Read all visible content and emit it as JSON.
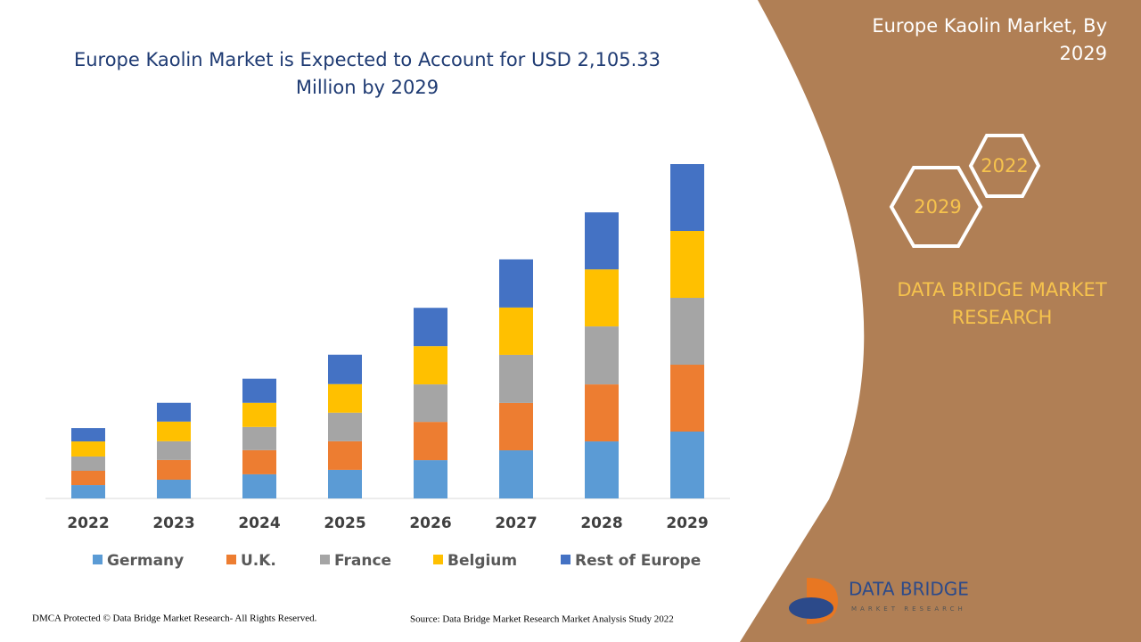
{
  "chart_data": {
    "type": "stacked_bar",
    "title": "Europe Kaolin Market is Expected to Account for USD 2,105.33 Million by 2029",
    "categories": [
      "2022",
      "2023",
      "2024",
      "2025",
      "2026",
      "2027",
      "2028",
      "2029"
    ],
    "series": [
      {
        "name": "Germany",
        "color": "#5b9bd5",
        "values": [
          84,
          118,
          152,
          180,
          241,
          303,
          359,
          421
        ]
      },
      {
        "name": "U.K.",
        "color": "#ed7d31",
        "values": [
          90,
          124,
          152,
          180,
          241,
          298,
          359,
          421
        ]
      },
      {
        "name": "France",
        "color": "#a5a5a5",
        "values": [
          90,
          118,
          146,
          180,
          236,
          303,
          365,
          421
        ]
      },
      {
        "name": "Belgium",
        "color": "#ffc000",
        "values": [
          95,
          124,
          152,
          180,
          241,
          298,
          359,
          421
        ]
      },
      {
        "name": "Rest of Europe",
        "color": "#4472c4",
        "values": [
          84,
          118,
          152,
          185,
          241,
          303,
          359,
          421
        ]
      }
    ],
    "ylim": [
      0,
      2150
    ]
  },
  "side_panel": {
    "title": "Europe Kaolin Market, By 2029",
    "hexagons": [
      "2022",
      "2029"
    ],
    "brand": "DATA BRIDGE MARKET RESEARCH"
  },
  "logo": {
    "name": "DATA BRIDGE",
    "tagline": "MARKET RESEARCH"
  },
  "footer": {
    "copyright": "DMCA Protected © Data Bridge Market Research- All Rights Reserved.",
    "source": "Source: Data Bridge Market Research Market Analysis Study 2022"
  }
}
